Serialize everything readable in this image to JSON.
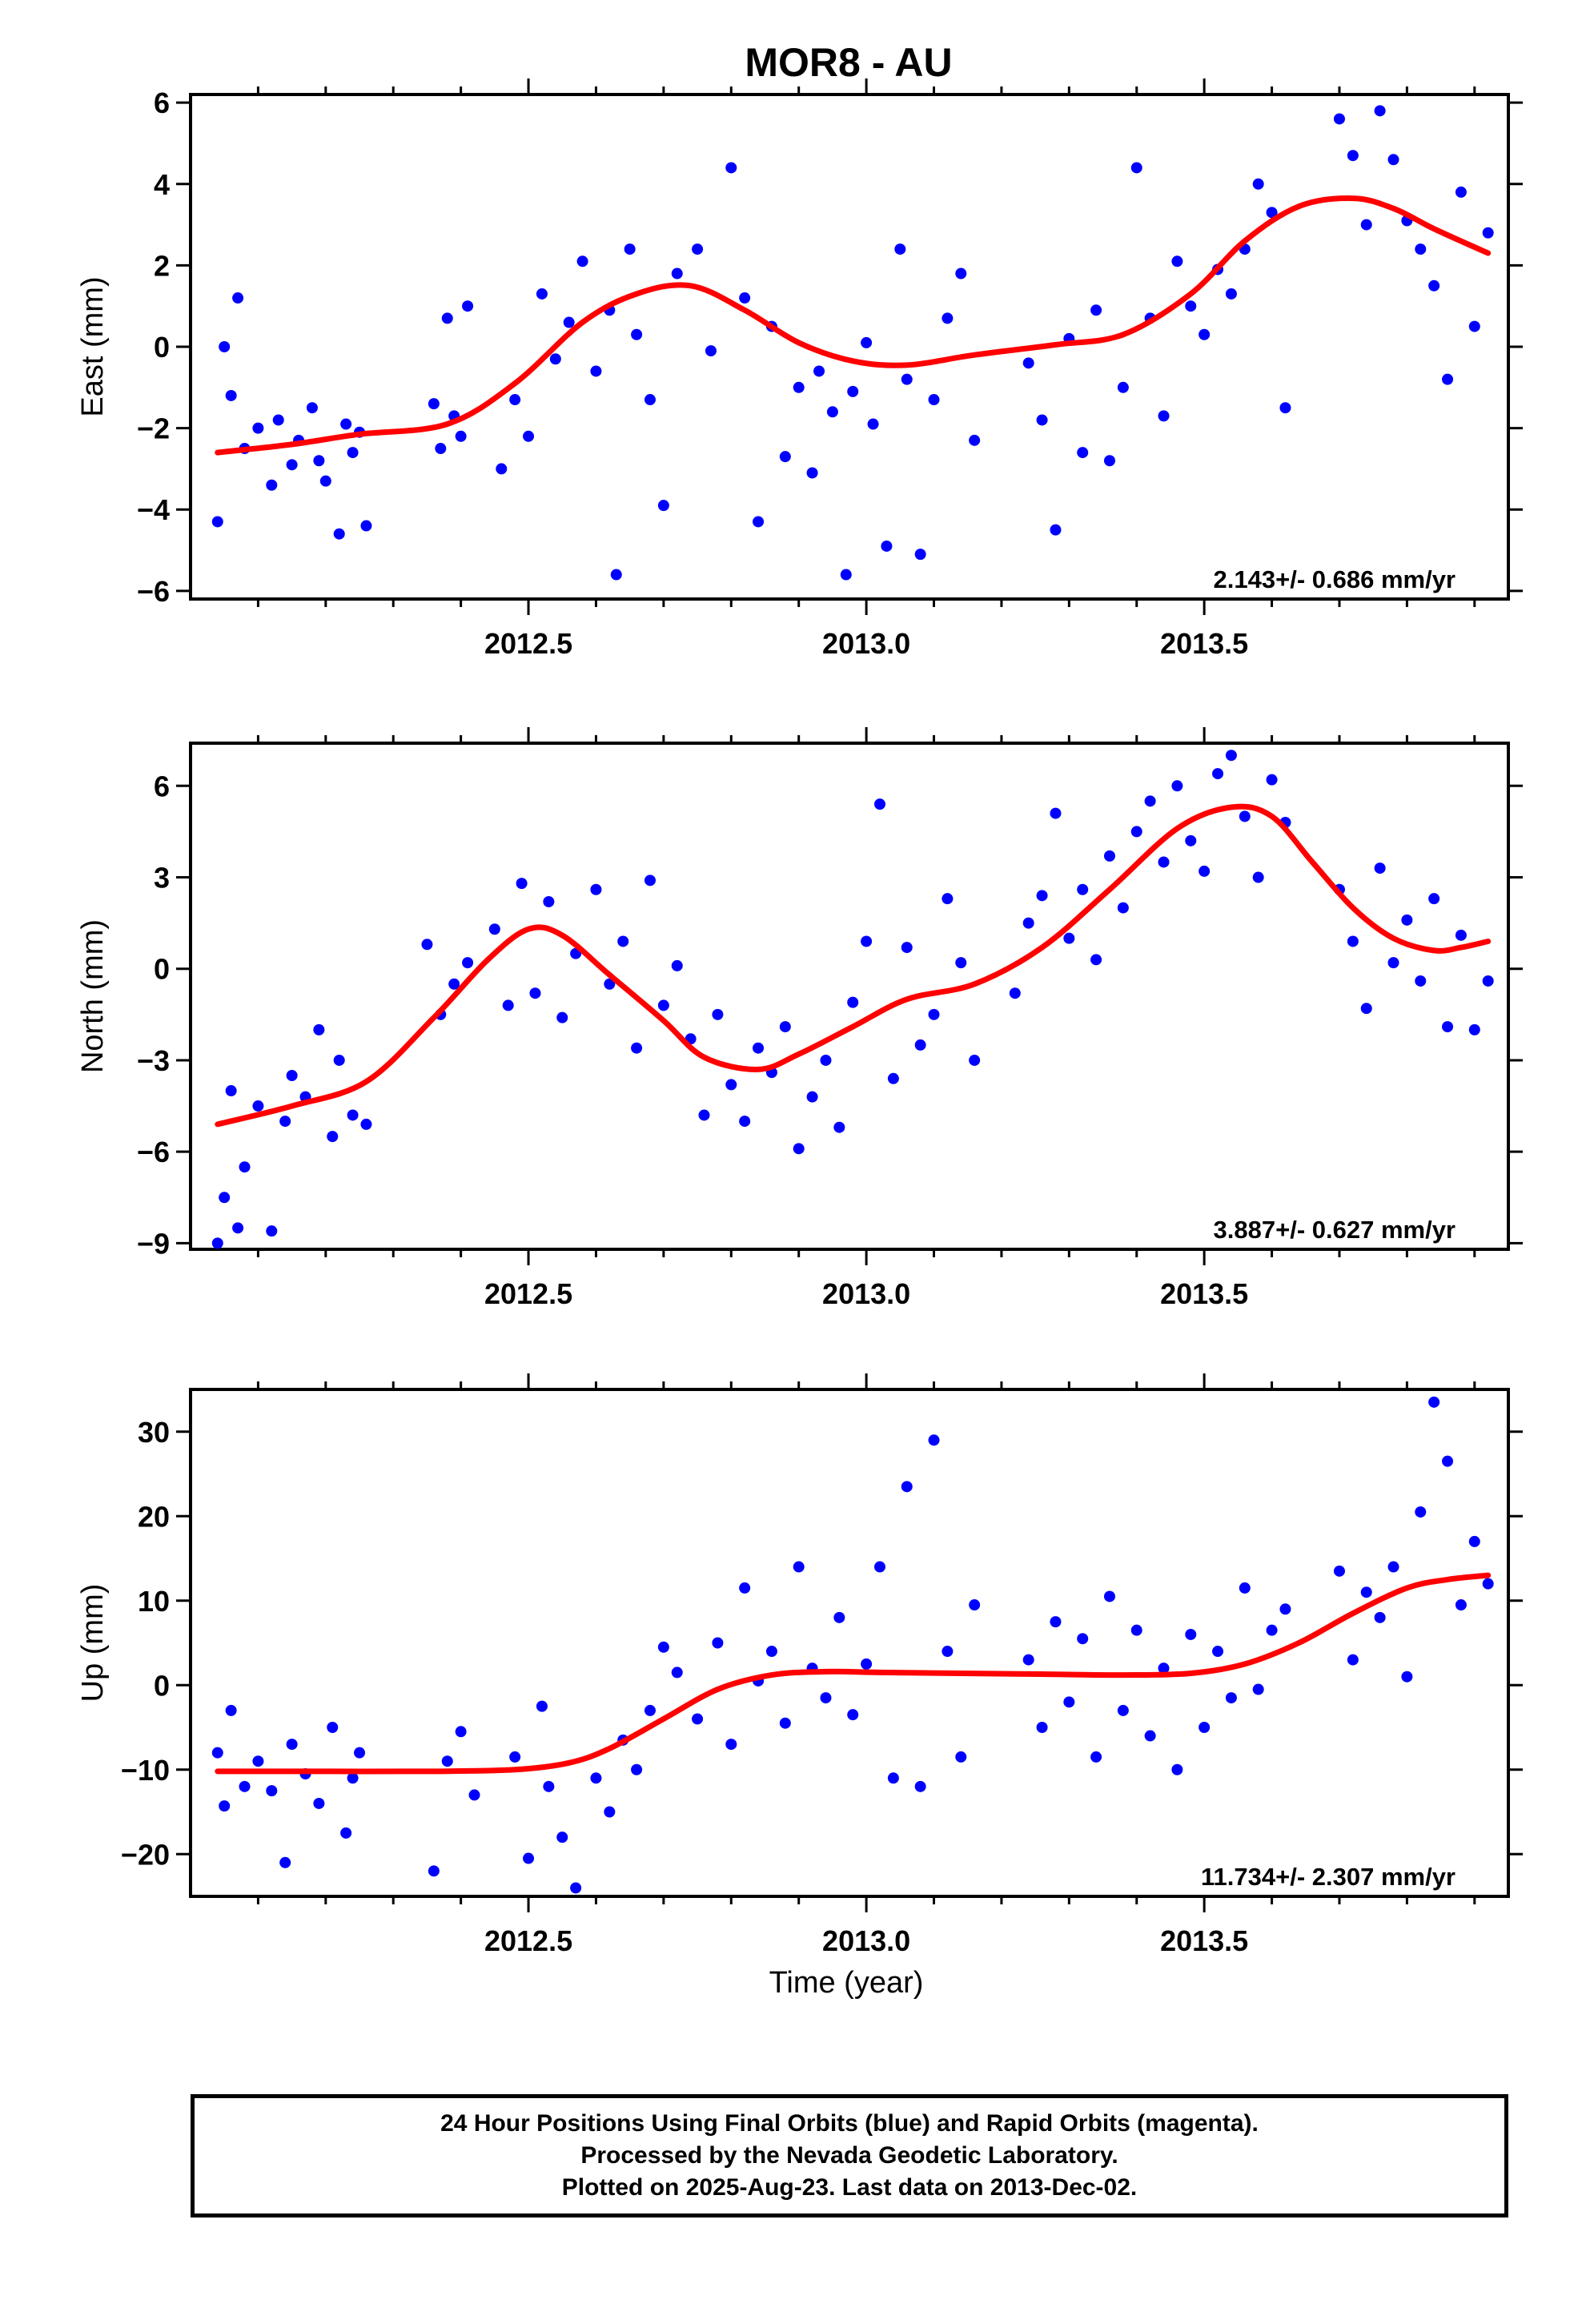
{
  "chart_data": {
    "type": "scatter",
    "title": "MOR8 - AU",
    "xlabel": "Time (year)",
    "x_ticks": [
      "2012.5",
      "2013.0",
      "2013.5"
    ],
    "panels": [
      {
        "ylabel": "East (mm)",
        "ylim": [
          -6.2,
          6.2
        ],
        "y_ticks": [
          6,
          4,
          2,
          0,
          -2,
          -4,
          -6
        ],
        "y_tick_labels": [
          "6",
          "4",
          "2",
          "0",
          "−2",
          "−4",
          "−6"
        ],
        "rate_text": "2.143+/- 0.686 mm/yr",
        "trend": {
          "x": [
            2012.04,
            2012.15,
            2012.25,
            2012.38,
            2012.48,
            2012.58,
            2012.66,
            2012.74,
            2012.82,
            2012.9,
            2012.98,
            2013.06,
            2013.16,
            2013.28,
            2013.38,
            2013.48,
            2013.56,
            2013.64,
            2013.72,
            2013.78,
            2013.84,
            2013.92
          ],
          "y": [
            -2.6,
            -2.4,
            -2.15,
            -1.9,
            -0.9,
            0.6,
            1.3,
            1.5,
            0.9,
            0.1,
            -0.35,
            -0.45,
            -0.2,
            0.05,
            0.3,
            1.3,
            2.6,
            3.45,
            3.65,
            3.4,
            2.9,
            2.3
          ]
        },
        "points": {
          "x": [
            2012.04,
            2012.05,
            2012.06,
            2012.07,
            2012.08,
            2012.1,
            2012.12,
            2012.13,
            2012.15,
            2012.16,
            2012.18,
            2012.19,
            2012.2,
            2012.22,
            2012.23,
            2012.24,
            2012.25,
            2012.26,
            2012.36,
            2012.37,
            2012.38,
            2012.39,
            2012.4,
            2012.41,
            2012.46,
            2012.48,
            2012.5,
            2012.52,
            2012.54,
            2012.56,
            2012.58,
            2012.6,
            2012.62,
            2012.63,
            2012.65,
            2012.66,
            2012.68,
            2012.7,
            2012.72,
            2012.75,
            2012.77,
            2012.8,
            2012.82,
            2012.84,
            2012.86,
            2012.88,
            2012.9,
            2012.92,
            2012.93,
            2012.95,
            2012.97,
            2012.98,
            2013.0,
            2013.01,
            2013.03,
            2013.05,
            2013.06,
            2013.08,
            2013.1,
            2013.12,
            2013.14,
            2013.16,
            2013.24,
            2013.26,
            2013.28,
            2013.3,
            2013.32,
            2013.34,
            2013.36,
            2013.38,
            2013.4,
            2013.42,
            2013.44,
            2013.46,
            2013.48,
            2013.5,
            2013.52,
            2013.54,
            2013.56,
            2013.58,
            2013.6,
            2013.62,
            2013.7,
            2013.72,
            2013.74,
            2013.76,
            2013.78,
            2013.8,
            2013.82,
            2013.84,
            2013.86,
            2013.88,
            2013.9,
            2013.92
          ],
          "y": [
            -4.3,
            0.0,
            -1.2,
            1.2,
            -2.5,
            -2.0,
            -3.4,
            -1.8,
            -2.9,
            -2.3,
            -1.5,
            -2.8,
            -3.3,
            -4.6,
            -1.9,
            -2.6,
            -2.1,
            -4.4,
            -1.4,
            -2.5,
            0.7,
            -1.7,
            -2.2,
            1.0,
            -3.0,
            -1.3,
            -2.2,
            1.3,
            -0.3,
            0.6,
            2.1,
            -0.6,
            0.9,
            -5.6,
            2.4,
            0.3,
            -1.3,
            -3.9,
            1.8,
            2.4,
            -0.1,
            4.4,
            1.2,
            -4.3,
            0.5,
            -2.7,
            -1.0,
            -3.1,
            -0.6,
            -1.6,
            -5.6,
            -1.1,
            0.1,
            -1.9,
            -4.9,
            2.4,
            -0.8,
            -5.1,
            -1.3,
            0.7,
            1.8,
            -2.3,
            -0.4,
            -1.8,
            -4.5,
            0.2,
            -2.6,
            0.9,
            -2.8,
            -1.0,
            4.4,
            0.7,
            -1.7,
            2.1,
            1.0,
            0.3,
            1.9,
            1.3,
            2.4,
            4.0,
            3.3,
            -1.5,
            5.6,
            4.7,
            3.0,
            5.8,
            4.6,
            3.1,
            2.4,
            1.5,
            -0.8,
            3.8,
            0.5,
            2.8
          ]
        }
      },
      {
        "ylabel": "North (mm)",
        "ylim": [
          -9.2,
          7.4
        ],
        "y_ticks": [
          6,
          3,
          0,
          -3,
          -6,
          -9
        ],
        "y_tick_labels": [
          "6",
          "3",
          "0",
          "−3",
          "−6",
          "−9"
        ],
        "rate_text": "3.887+/- 0.627 mm/yr",
        "trend": {
          "x": [
            2012.04,
            2012.15,
            2012.26,
            2012.36,
            2012.44,
            2012.5,
            2012.55,
            2012.62,
            2012.7,
            2012.76,
            2012.84,
            2012.9,
            2012.98,
            2013.06,
            2013.16,
            2013.26,
            2013.36,
            2013.46,
            2013.54,
            2013.6,
            2013.66,
            2013.72,
            2013.78,
            2013.84,
            2013.88,
            2013.92
          ],
          "y": [
            -5.1,
            -4.5,
            -3.7,
            -1.6,
            0.3,
            1.3,
            1.1,
            -0.2,
            -1.7,
            -2.9,
            -3.3,
            -2.8,
            -1.9,
            -1.0,
            -0.5,
            0.7,
            2.6,
            4.6,
            5.3,
            5.0,
            3.5,
            2.0,
            1.0,
            0.6,
            0.7,
            0.9
          ]
        },
        "points": {
          "x": [
            2012.04,
            2012.05,
            2012.06,
            2012.07,
            2012.08,
            2012.1,
            2012.12,
            2012.14,
            2012.15,
            2012.17,
            2012.19,
            2012.21,
            2012.22,
            2012.24,
            2012.26,
            2012.35,
            2012.37,
            2012.39,
            2012.41,
            2012.45,
            2012.47,
            2012.49,
            2012.51,
            2012.53,
            2012.55,
            2012.57,
            2012.6,
            2012.62,
            2012.64,
            2012.66,
            2012.68,
            2012.7,
            2012.72,
            2012.74,
            2012.76,
            2012.78,
            2012.8,
            2012.82,
            2012.84,
            2012.86,
            2012.88,
            2012.9,
            2012.92,
            2012.94,
            2012.96,
            2012.98,
            2013.0,
            2013.02,
            2013.04,
            2013.06,
            2013.08,
            2013.1,
            2013.12,
            2013.14,
            2013.16,
            2013.22,
            2013.24,
            2013.26,
            2013.28,
            2013.3,
            2013.32,
            2013.34,
            2013.36,
            2013.38,
            2013.4,
            2013.42,
            2013.44,
            2013.46,
            2013.48,
            2013.5,
            2013.52,
            2013.54,
            2013.56,
            2013.58,
            2013.6,
            2013.62,
            2013.7,
            2013.72,
            2013.74,
            2013.76,
            2013.78,
            2013.8,
            2013.82,
            2013.84,
            2013.86,
            2013.88,
            2013.9,
            2013.92
          ],
          "y": [
            -9.0,
            -7.5,
            -4.0,
            -8.5,
            -6.5,
            -4.5,
            -8.6,
            -5.0,
            -3.5,
            -4.2,
            -2.0,
            -5.5,
            -3.0,
            -4.8,
            -5.1,
            0.8,
            -1.5,
            -0.5,
            0.2,
            1.3,
            -1.2,
            2.8,
            -0.8,
            2.2,
            -1.6,
            0.5,
            2.6,
            -0.5,
            0.9,
            -2.6,
            2.9,
            -1.2,
            0.1,
            -2.3,
            -4.8,
            -1.5,
            -3.8,
            -5.0,
            -2.6,
            -3.4,
            -1.9,
            -5.9,
            -4.2,
            -3.0,
            -5.2,
            -1.1,
            0.9,
            5.4,
            -3.6,
            0.7,
            -2.5,
            -1.5,
            2.3,
            0.2,
            -3.0,
            -0.8,
            1.5,
            2.4,
            5.1,
            1.0,
            2.6,
            0.3,
            3.7,
            2.0,
            4.5,
            5.5,
            3.5,
            6.0,
            4.2,
            3.2,
            6.4,
            7.0,
            5.0,
            3.0,
            6.2,
            4.8,
            2.6,
            0.9,
            -1.3,
            3.3,
            0.2,
            1.6,
            -0.4,
            2.3,
            -1.9,
            1.1,
            -2.0,
            -0.4
          ]
        }
      },
      {
        "ylabel": "Up (mm)",
        "ylim": [
          -25,
          35
        ],
        "y_ticks": [
          30,
          20,
          10,
          0,
          -10,
          -20
        ],
        "y_tick_labels": [
          "30",
          "20",
          "10",
          "0",
          "−10",
          "−20"
        ],
        "rate_text": "11.734+/- 2.307 mm/yr",
        "trend": {
          "x": [
            2012.04,
            2012.2,
            2012.36,
            2012.48,
            2012.56,
            2012.62,
            2012.7,
            2012.78,
            2012.86,
            2012.94,
            2013.02,
            2013.14,
            2013.26,
            2013.38,
            2013.48,
            2013.56,
            2013.64,
            2013.72,
            2013.8,
            2013.86,
            2013.92
          ],
          "y": [
            -10.2,
            -10.2,
            -10.2,
            -10.0,
            -9.2,
            -7.5,
            -4.0,
            -0.5,
            1.2,
            1.6,
            1.5,
            1.4,
            1.3,
            1.2,
            1.4,
            2.5,
            5.0,
            8.5,
            11.5,
            12.5,
            13.0
          ]
        },
        "points": {
          "x": [
            2012.04,
            2012.05,
            2012.06,
            2012.08,
            2012.1,
            2012.12,
            2012.14,
            2012.15,
            2012.17,
            2012.19,
            2012.21,
            2012.23,
            2012.24,
            2012.25,
            2012.36,
            2012.38,
            2012.4,
            2012.42,
            2012.48,
            2012.5,
            2012.52,
            2012.53,
            2012.55,
            2012.57,
            2012.6,
            2012.62,
            2012.64,
            2012.66,
            2012.68,
            2012.7,
            2012.72,
            2012.75,
            2012.78,
            2012.8,
            2012.82,
            2012.84,
            2012.86,
            2012.88,
            2012.9,
            2012.92,
            2012.94,
            2012.96,
            2012.98,
            2013.0,
            2013.02,
            2013.04,
            2013.06,
            2013.08,
            2013.1,
            2013.12,
            2013.14,
            2013.16,
            2013.24,
            2013.26,
            2013.28,
            2013.3,
            2013.32,
            2013.34,
            2013.36,
            2013.38,
            2013.4,
            2013.42,
            2013.44,
            2013.46,
            2013.48,
            2013.5,
            2013.52,
            2013.54,
            2013.56,
            2013.58,
            2013.6,
            2013.62,
            2013.7,
            2013.72,
            2013.74,
            2013.76,
            2013.78,
            2013.8,
            2013.82,
            2013.84,
            2013.86,
            2013.88,
            2013.9,
            2013.92
          ],
          "y": [
            -8.0,
            -14.3,
            -3.0,
            -12.0,
            -9.0,
            -12.5,
            -21.0,
            -7.0,
            -10.5,
            -14.0,
            -5.0,
            -17.5,
            -11.0,
            -8.0,
            -22.0,
            -9.0,
            -5.5,
            -13.0,
            -8.5,
            -20.5,
            -2.5,
            -12.0,
            -18.0,
            -24.0,
            -11.0,
            -15.0,
            -6.5,
            -10.0,
            -3.0,
            4.5,
            1.5,
            -4.0,
            5.0,
            -7.0,
            11.5,
            0.5,
            4.0,
            -4.5,
            14.0,
            2.0,
            -1.5,
            8.0,
            -3.5,
            2.5,
            14.0,
            -11.0,
            23.5,
            -12.0,
            29.0,
            4.0,
            -8.5,
            9.5,
            3.0,
            -5.0,
            7.5,
            -2.0,
            5.5,
            -8.5,
            10.5,
            -3.0,
            6.5,
            -6.0,
            2.0,
            -10.0,
            6.0,
            -5.0,
            4.0,
            -1.5,
            11.5,
            -0.5,
            6.5,
            9.0,
            13.5,
            3.0,
            11.0,
            8.0,
            14.0,
            1.0,
            20.5,
            33.5,
            26.5,
            9.5,
            17.0,
            12.0
          ]
        }
      }
    ]
  },
  "footer": {
    "line1": "24 Hour Positions Using Final Orbits (blue) and Rapid Orbits (magenta).",
    "line2": "Processed by the Nevada Geodetic Laboratory.",
    "line3": "Plotted on 2025-Aug-23. Last data on 2013-Dec-02."
  },
  "colors": {
    "points": "#0000ff",
    "trend": "#ff0000",
    "axis": "#000000"
  }
}
